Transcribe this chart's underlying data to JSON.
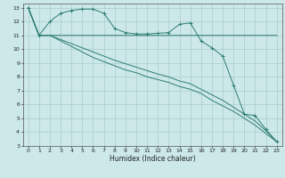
{
  "xlabel": "Humidex (Indice chaleur)",
  "bg_color": "#cce8e8",
  "grid_color": "#aacccc",
  "line_color": "#2e7d72",
  "xlim": [
    -0.5,
    23.5
  ],
  "ylim": [
    3,
    13.3
  ],
  "xtick_labels": [
    "0",
    "1",
    "2",
    "3",
    "4",
    "5",
    "6",
    "7",
    "8",
    "9",
    "10",
    "11",
    "12",
    "13",
    "14",
    "15",
    "16",
    "17",
    "18",
    "19",
    "20",
    "21",
    "22",
    "23"
  ],
  "ytick_labels": [
    "3",
    "4",
    "5",
    "6",
    "7",
    "8",
    "9",
    "10",
    "11",
    "12",
    "13"
  ],
  "ytick_vals": [
    3,
    4,
    5,
    6,
    7,
    8,
    9,
    10,
    11,
    12,
    13
  ],
  "line1_x": [
    0,
    1,
    2,
    3,
    4,
    5,
    6,
    7,
    8,
    9,
    10,
    11,
    12,
    13,
    14,
    15,
    16,
    17,
    18,
    19,
    20,
    21,
    22,
    23
  ],
  "line1_y": [
    13,
    11,
    12,
    12.6,
    12.8,
    12.9,
    12.9,
    12.6,
    11.5,
    11.2,
    11.1,
    11.1,
    11.15,
    11.2,
    11.8,
    11.9,
    10.6,
    10.1,
    9.5,
    7.4,
    5.3,
    5.2,
    4.2,
    3.3
  ],
  "line2_x": [
    0,
    1,
    2,
    23
  ],
  "line2_y": [
    13,
    11,
    11,
    11
  ],
  "line3_x": [
    0,
    1,
    2,
    3,
    4,
    5,
    6,
    7,
    8,
    9,
    10,
    11,
    12,
    13,
    14,
    15,
    16,
    17,
    18,
    19,
    20,
    21,
    22,
    23
  ],
  "line3_y": [
    13,
    11,
    11,
    10.7,
    10.4,
    10.1,
    9.8,
    9.5,
    9.2,
    8.95,
    8.7,
    8.45,
    8.2,
    8.0,
    7.7,
    7.5,
    7.1,
    6.7,
    6.3,
    5.8,
    5.3,
    4.8,
    4.1,
    3.3
  ],
  "line4_x": [
    0,
    1,
    2,
    3,
    4,
    5,
    6,
    7,
    8,
    9,
    10,
    11,
    12,
    13,
    14,
    15,
    16,
    17,
    18,
    19,
    20,
    21,
    22,
    23
  ],
  "line4_y": [
    13,
    11,
    11,
    10.6,
    10.2,
    9.8,
    9.4,
    9.1,
    8.8,
    8.5,
    8.3,
    8.0,
    7.8,
    7.6,
    7.3,
    7.1,
    6.8,
    6.3,
    5.9,
    5.5,
    5.0,
    4.5,
    3.9,
    3.3
  ]
}
